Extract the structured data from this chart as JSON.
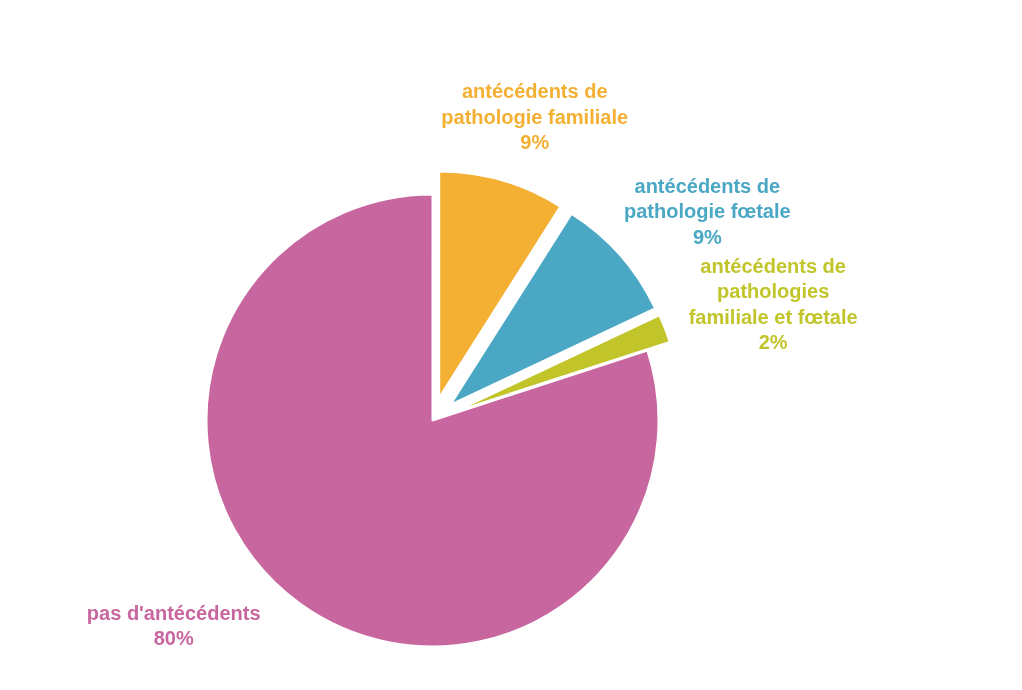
{
  "chart_data": {
    "type": "pie",
    "categories": [
      "antécédents de pathologie familiale",
      "antécédents de pathologie fœtale",
      "antécédents de pathologies familiale et fœtale",
      "pas d'antécédents"
    ],
    "values": [
      9,
      9,
      2,
      80
    ],
    "colors": [
      "#f3b033",
      "#4aa8c4",
      "#c2c52a",
      "#c8679f"
    ],
    "value_labels": [
      "9%",
      "9%",
      "2%",
      "80%"
    ]
  }
}
